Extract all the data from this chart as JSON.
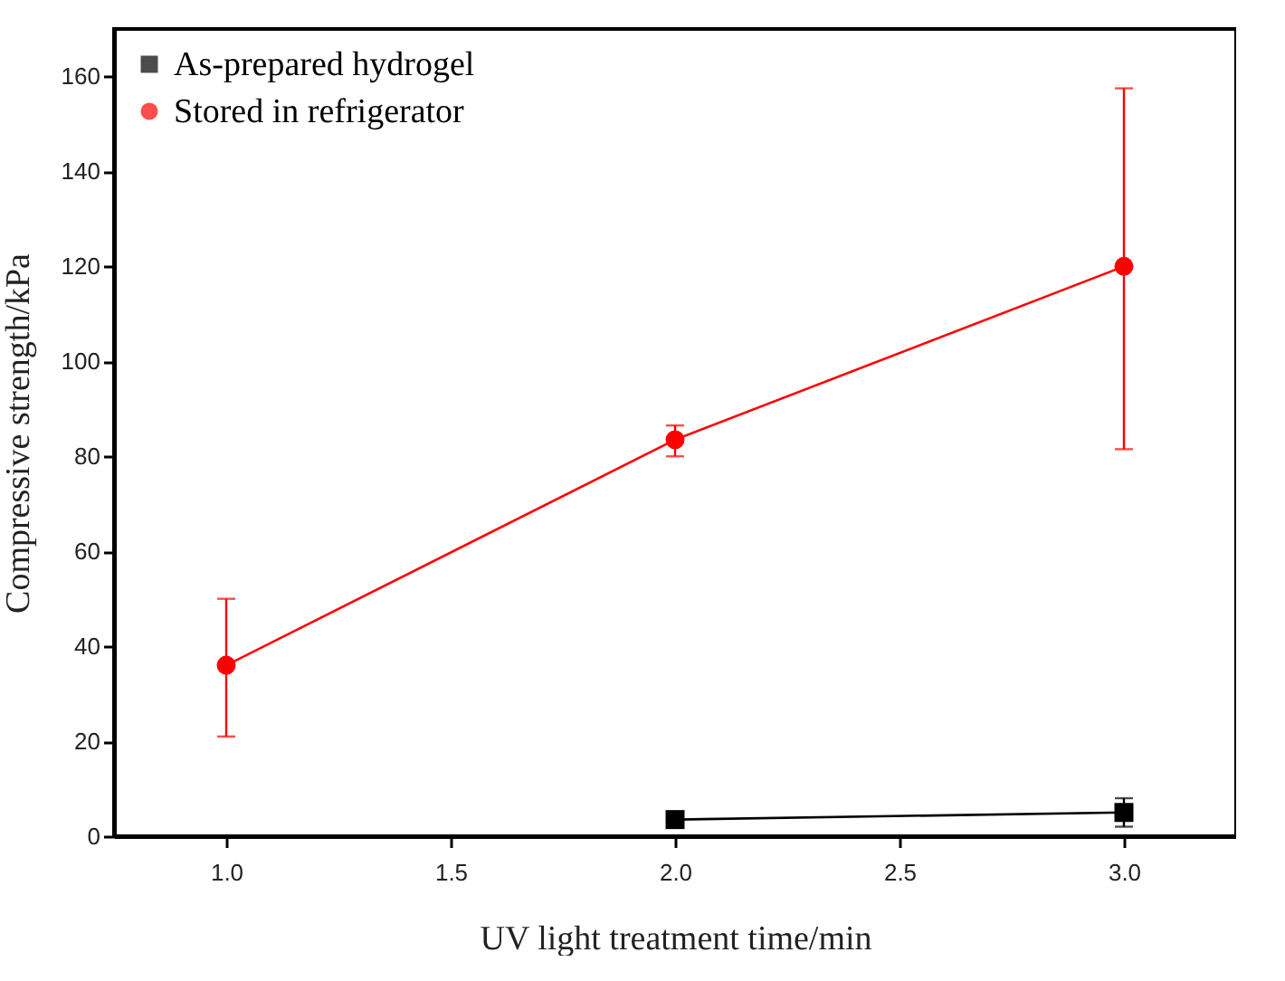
{
  "chart_data": {
    "type": "line",
    "xlabel": "UV light treatment time/min",
    "ylabel": "Compressive strength/kPa",
    "xlim": [
      0.75,
      3.25
    ],
    "xticks": [
      {
        "value": 1,
        "label": "1.0"
      },
      {
        "value": 1.5,
        "label": "1.5"
      },
      {
        "value": 2,
        "label": "2.0"
      },
      {
        "value": 2.5,
        "label": "2.5"
      },
      {
        "value": 3,
        "label": "3.0"
      }
    ],
    "ylim": [
      0,
      170
    ],
    "yticks": [
      0,
      20,
      40,
      60,
      80,
      100,
      120,
      140,
      160
    ],
    "grid": false,
    "legend": "top left",
    "line_style": "solid",
    "series": [
      {
        "name": "As-prepared hydrogel",
        "color": "#000000",
        "marker": "square",
        "x": [
          2,
          3
        ],
        "values": [
          3.5,
          5
        ],
        "errors": [
          null,
          [
            2,
            8
          ]
        ]
      },
      {
        "name": "Stored in refrigerator",
        "color": "#ff0000",
        "marker": "circle",
        "x": [
          1,
          2,
          3
        ],
        "values": [
          36,
          83.5,
          120
        ],
        "errors": [
          [
            21,
            50
          ],
          [
            80,
            86.5
          ],
          [
            81.5,
            157.5
          ]
        ]
      }
    ]
  }
}
